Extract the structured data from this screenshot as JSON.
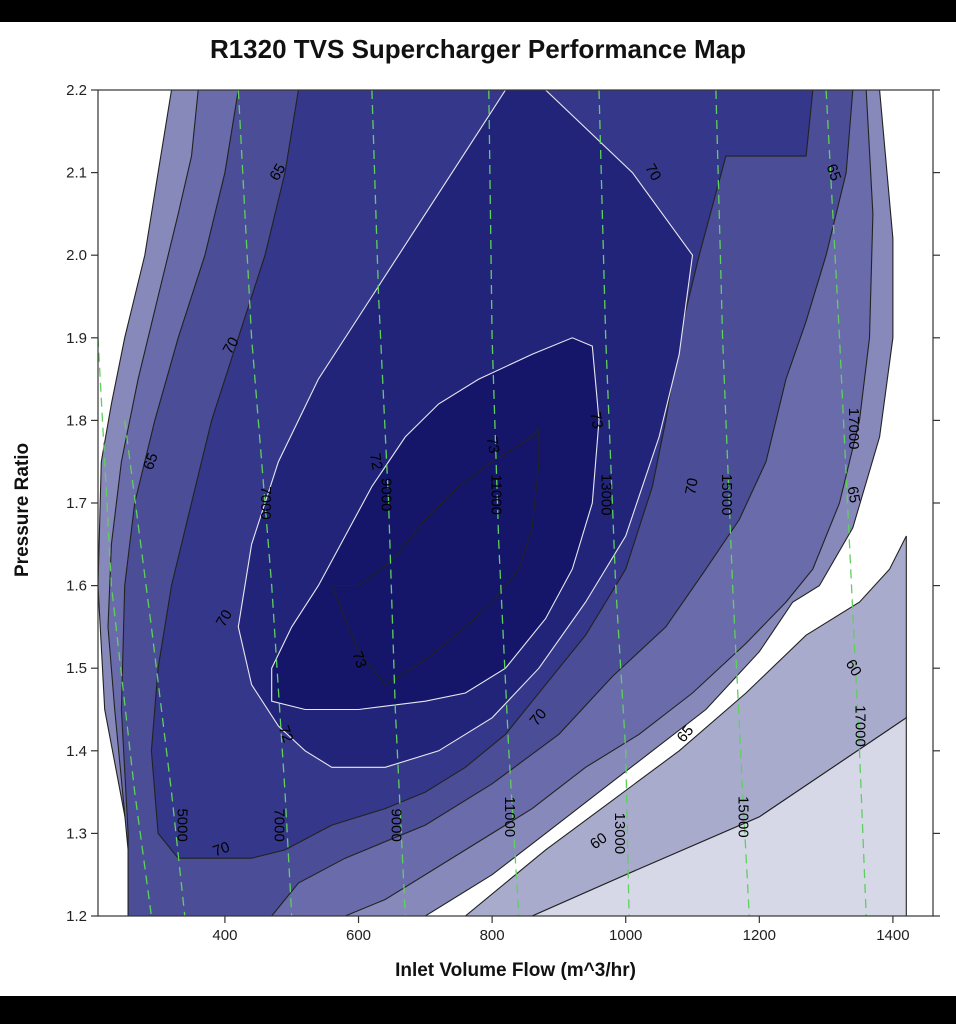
{
  "chart_data": {
    "type": "contour",
    "title": "R1320 TVS Supercharger Performance Map",
    "xlabel": "Inlet Volume Flow (m^3/hr)",
    "ylabel": "Pressure Ratio",
    "xlim": [
      210,
      1460
    ],
    "ylim": [
      1.2,
      2.2
    ],
    "xticks": [
      "400",
      "600",
      "800",
      "1000",
      "1200",
      "1400"
    ],
    "yticks": [
      "1.2",
      "1.3",
      "1.4",
      "1.5",
      "1.6",
      "1.7",
      "1.8",
      "1.9",
      "2.0",
      "2.1",
      "2.2"
    ],
    "colors": {
      "bg": "#ffffff",
      "band_lt60": "#d6d8e8",
      "band_60_65": "#a9abcd",
      "band_65": "#8889bb",
      "band_65_70": "#6a6baa",
      "band_70": "#4b4d96",
      "band_70_72": "#35378a",
      "band_72_73": "#22247a",
      "band_73": "#15166a",
      "speed_line": "#5fcf5f",
      "contour_dark": "#222222",
      "contour_light": "#e8e8f0"
    },
    "efficiency_bands": [
      {
        "level": "<60",
        "polygon": [
          [
            1420,
            1.44
          ],
          [
            1420,
            1.2
          ],
          [
            860,
            1.2
          ],
          [
            1000,
            1.25
          ],
          [
            1200,
            1.32
          ],
          [
            1420,
            1.44
          ]
        ]
      },
      {
        "level": "60",
        "polygon": [
          [
            1420,
            1.66
          ],
          [
            1395,
            1.62
          ],
          [
            1350,
            1.58
          ],
          [
            1270,
            1.54
          ],
          [
            1180,
            1.47
          ],
          [
            1080,
            1.4
          ],
          [
            980,
            1.34
          ],
          [
            880,
            1.28
          ],
          [
            760,
            1.2
          ],
          [
            860,
            1.2
          ],
          [
            1000,
            1.25
          ],
          [
            1200,
            1.32
          ],
          [
            1420,
            1.44
          ]
        ]
      },
      {
        "level": "65",
        "polygon": [
          [
            1380,
            2.2
          ],
          [
            1400,
            2.02
          ],
          [
            1400,
            1.9
          ],
          [
            1380,
            1.78
          ],
          [
            1340,
            1.67
          ],
          [
            1290,
            1.6
          ],
          [
            1250,
            1.58
          ],
          [
            1200,
            1.52
          ],
          [
            1120,
            1.45
          ],
          [
            1040,
            1.4
          ],
          [
            960,
            1.35
          ],
          [
            880,
            1.3
          ],
          [
            800,
            1.25
          ],
          [
            700,
            1.2
          ],
          [
            255,
            1.2
          ],
          [
            255,
            1.3
          ],
          [
            220,
            1.45
          ],
          [
            210,
            1.6
          ],
          [
            215,
            1.75
          ],
          [
            230,
            1.82
          ],
          [
            250,
            1.9
          ],
          [
            280,
            2.0
          ],
          [
            300,
            2.1
          ],
          [
            320,
            2.2
          ]
        ]
      },
      {
        "level": "65-70",
        "polygon": [
          [
            1360,
            2.2
          ],
          [
            1370,
            2.05
          ],
          [
            1365,
            1.9
          ],
          [
            1350,
            1.8
          ],
          [
            1320,
            1.7
          ],
          [
            1280,
            1.62
          ],
          [
            1240,
            1.58
          ],
          [
            1180,
            1.53
          ],
          [
            1100,
            1.47
          ],
          [
            1020,
            1.42
          ],
          [
            940,
            1.38
          ],
          [
            860,
            1.33
          ],
          [
            760,
            1.28
          ],
          [
            640,
            1.22
          ],
          [
            580,
            1.2
          ],
          [
            255,
            1.2
          ],
          [
            255,
            1.28
          ],
          [
            235,
            1.45
          ],
          [
            225,
            1.55
          ],
          [
            230,
            1.65
          ],
          [
            245,
            1.75
          ],
          [
            270,
            1.85
          ],
          [
            300,
            1.95
          ],
          [
            330,
            2.05
          ],
          [
            350,
            2.12
          ],
          [
            360,
            2.2
          ]
        ]
      },
      {
        "level": "70",
        "polygon": [
          [
            1340,
            2.2
          ],
          [
            1330,
            2.1
          ],
          [
            1300,
            2.0
          ],
          [
            1270,
            1.92
          ],
          [
            1240,
            1.85
          ],
          [
            1210,
            1.75
          ],
          [
            1170,
            1.68
          ],
          [
            1120,
            1.62
          ],
          [
            1060,
            1.55
          ],
          [
            980,
            1.49
          ],
          [
            900,
            1.42
          ],
          [
            800,
            1.36
          ],
          [
            700,
            1.31
          ],
          [
            580,
            1.27
          ],
          [
            510,
            1.24
          ],
          [
            470,
            1.2
          ],
          [
            255,
            1.2
          ],
          [
            255,
            1.3
          ],
          [
            245,
            1.45
          ],
          [
            250,
            1.6
          ],
          [
            265,
            1.7
          ],
          [
            295,
            1.8
          ],
          [
            330,
            1.9
          ],
          [
            370,
            2.0
          ],
          [
            400,
            2.1
          ],
          [
            420,
            2.2
          ]
        ]
      },
      {
        "level": "70-72",
        "polygon": [
          [
            1280,
            2.2
          ],
          [
            1270,
            2.12
          ],
          [
            1150,
            2.12
          ],
          [
            1110,
            2.0
          ],
          [
            1080,
            1.9
          ],
          [
            1060,
            1.8
          ],
          [
            1040,
            1.72
          ],
          [
            1000,
            1.62
          ],
          [
            940,
            1.54
          ],
          [
            880,
            1.48
          ],
          [
            820,
            1.42
          ],
          [
            760,
            1.38
          ],
          [
            700,
            1.35
          ],
          [
            640,
            1.33
          ],
          [
            560,
            1.31
          ],
          [
            490,
            1.28
          ],
          [
            440,
            1.27
          ],
          [
            400,
            1.27
          ],
          [
            330,
            1.27
          ],
          [
            300,
            1.3
          ],
          [
            290,
            1.4
          ],
          [
            300,
            1.5
          ],
          [
            320,
            1.6
          ],
          [
            350,
            1.7
          ],
          [
            380,
            1.8
          ],
          [
            420,
            1.9
          ],
          [
            460,
            2.0
          ],
          [
            490,
            2.1
          ],
          [
            510,
            2.2
          ]
        ]
      },
      {
        "level": "72-73",
        "polygon": [
          [
            880,
            2.2
          ],
          [
            1010,
            2.1
          ],
          [
            1100,
            2.0
          ],
          [
            1080,
            1.88
          ],
          [
            1050,
            1.78
          ],
          [
            1000,
            1.66
          ],
          [
            940,
            1.58
          ],
          [
            870,
            1.5
          ],
          [
            800,
            1.44
          ],
          [
            720,
            1.4
          ],
          [
            640,
            1.38
          ],
          [
            560,
            1.38
          ],
          [
            520,
            1.4
          ],
          [
            480,
            1.43
          ],
          [
            440,
            1.48
          ],
          [
            420,
            1.55
          ],
          [
            440,
            1.65
          ],
          [
            480,
            1.75
          ],
          [
            540,
            1.85
          ],
          [
            620,
            1.95
          ],
          [
            700,
            2.05
          ],
          [
            780,
            2.15
          ],
          [
            820,
            2.2
          ]
        ]
      },
      {
        "level": "73",
        "polygon": [
          [
            950,
            1.89
          ],
          [
            920,
            1.9
          ],
          [
            860,
            1.88
          ],
          [
            780,
            1.85
          ],
          [
            720,
            1.82
          ],
          [
            670,
            1.78
          ],
          [
            620,
            1.72
          ],
          [
            580,
            1.66
          ],
          [
            540,
            1.6
          ],
          [
            500,
            1.55
          ],
          [
            470,
            1.5
          ],
          [
            470,
            1.46
          ],
          [
            520,
            1.45
          ],
          [
            600,
            1.45
          ],
          [
            700,
            1.46
          ],
          [
            760,
            1.47
          ],
          [
            820,
            1.5
          ],
          [
            880,
            1.56
          ],
          [
            920,
            1.62
          ],
          [
            950,
            1.7
          ],
          [
            960,
            1.8
          ],
          [
            950,
            1.89
          ]
        ]
      },
      {
        "level": "core",
        "polygon": [
          [
            870,
            1.79
          ],
          [
            860,
            1.78
          ],
          [
            800,
            1.75
          ],
          [
            750,
            1.72
          ],
          [
            700,
            1.68
          ],
          [
            650,
            1.63
          ],
          [
            600,
            1.6
          ],
          [
            560,
            1.6
          ],
          [
            600,
            1.52
          ],
          [
            640,
            1.48
          ],
          [
            660,
            1.49
          ],
          [
            700,
            1.51
          ],
          [
            760,
            1.55
          ],
          [
            800,
            1.58
          ],
          [
            840,
            1.62
          ],
          [
            860,
            1.67
          ],
          [
            870,
            1.75
          ],
          [
            870,
            1.79
          ]
        ]
      }
    ],
    "contour_labels": [
      {
        "text": "65",
        "x": 480,
        "y": 2.1,
        "angle": -60
      },
      {
        "text": "70",
        "x": 1040,
        "y": 2.1,
        "angle": 60
      },
      {
        "text": "65",
        "x": 1310,
        "y": 2.1,
        "angle": 70
      },
      {
        "text": "70",
        "x": 410,
        "y": 1.89,
        "angle": -60
      },
      {
        "text": "73",
        "x": 955,
        "y": 1.8,
        "angle": 80
      },
      {
        "text": "17000",
        "x": 1340,
        "y": 1.79,
        "angle": 90
      },
      {
        "text": "65",
        "x": 290,
        "y": 1.75,
        "angle": -70
      },
      {
        "text": "7000",
        "x": 460,
        "y": 1.7,
        "angle": 90
      },
      {
        "text": "72",
        "x": 625,
        "y": 1.75,
        "angle": 80
      },
      {
        "text": "9000",
        "x": 640,
        "y": 1.71,
        "angle": 90
      },
      {
        "text": "73",
        "x": 800,
        "y": 1.77,
        "angle": 80
      },
      {
        "text": "11000",
        "x": 805,
        "y": 1.71,
        "angle": 90
      },
      {
        "text": "13000",
        "x": 970,
        "y": 1.71,
        "angle": 90
      },
      {
        "text": "70",
        "x": 1100,
        "y": 1.72,
        "angle": -80
      },
      {
        "text": "15000",
        "x": 1150,
        "y": 1.71,
        "angle": 90
      },
      {
        "text": "65",
        "x": 1340,
        "y": 1.71,
        "angle": 80
      },
      {
        "text": "70",
        "x": 400,
        "y": 1.56,
        "angle": -60
      },
      {
        "text": "73",
        "x": 600,
        "y": 1.51,
        "angle": 70
      },
      {
        "text": "60",
        "x": 1340,
        "y": 1.5,
        "angle": 60
      },
      {
        "text": "70",
        "x": 870,
        "y": 1.44,
        "angle": -50
      },
      {
        "text": "65",
        "x": 1090,
        "y": 1.42,
        "angle": -50
      },
      {
        "text": "17000",
        "x": 1350,
        "y": 1.43,
        "angle": 90
      },
      {
        "text": "72",
        "x": 490,
        "y": 1.42,
        "angle": 70
      },
      {
        "text": "5000",
        "x": 335,
        "y": 1.31,
        "angle": 90
      },
      {
        "text": "7000",
        "x": 480,
        "y": 1.31,
        "angle": 90
      },
      {
        "text": "9000",
        "x": 655,
        "y": 1.31,
        "angle": 90
      },
      {
        "text": "11000",
        "x": 825,
        "y": 1.32,
        "angle": 90
      },
      {
        "text": "13000",
        "x": 990,
        "y": 1.3,
        "angle": 90
      },
      {
        "text": "15000",
        "x": 1175,
        "y": 1.32,
        "angle": 90
      },
      {
        "text": "70",
        "x": 395,
        "y": 1.28,
        "angle": -20
      },
      {
        "text": "60",
        "x": 960,
        "y": 1.29,
        "angle": -35
      }
    ],
    "speed_lines": [
      {
        "rpm": "5000",
        "points": [
          [
            250,
            1.8
          ],
          [
            290,
            1.55
          ],
          [
            320,
            1.35
          ],
          [
            340,
            1.2
          ]
        ]
      },
      {
        "rpm": "7000",
        "points": [
          [
            420,
            2.2
          ],
          [
            440,
            1.9
          ],
          [
            470,
            1.6
          ],
          [
            490,
            1.35
          ],
          [
            500,
            1.2
          ]
        ]
      },
      {
        "rpm": "9000",
        "points": [
          [
            620,
            2.2
          ],
          [
            630,
            1.95
          ],
          [
            645,
            1.7
          ],
          [
            655,
            1.45
          ],
          [
            670,
            1.2
          ]
        ]
      },
      {
        "rpm": "11000",
        "points": [
          [
            795,
            2.2
          ],
          [
            800,
            1.9
          ],
          [
            810,
            1.65
          ],
          [
            825,
            1.4
          ],
          [
            840,
            1.2
          ]
        ]
      },
      {
        "rpm": "13000",
        "points": [
          [
            960,
            2.2
          ],
          [
            970,
            1.9
          ],
          [
            985,
            1.6
          ],
          [
            1000,
            1.4
          ],
          [
            1005,
            1.2
          ]
        ]
      },
      {
        "rpm": "15000",
        "points": [
          [
            1135,
            2.2
          ],
          [
            1145,
            1.9
          ],
          [
            1160,
            1.6
          ],
          [
            1175,
            1.35
          ],
          [
            1185,
            1.2
          ]
        ]
      },
      {
        "rpm": "17000",
        "points": [
          [
            1300,
            2.2
          ],
          [
            1320,
            1.9
          ],
          [
            1335,
            1.65
          ],
          [
            1350,
            1.4
          ],
          [
            1360,
            1.2
          ]
        ]
      },
      {
        "rpm": "",
        "points": [
          [
            210,
            1.9
          ],
          [
            230,
            1.6
          ],
          [
            265,
            1.35
          ],
          [
            290,
            1.2
          ]
        ]
      }
    ]
  }
}
